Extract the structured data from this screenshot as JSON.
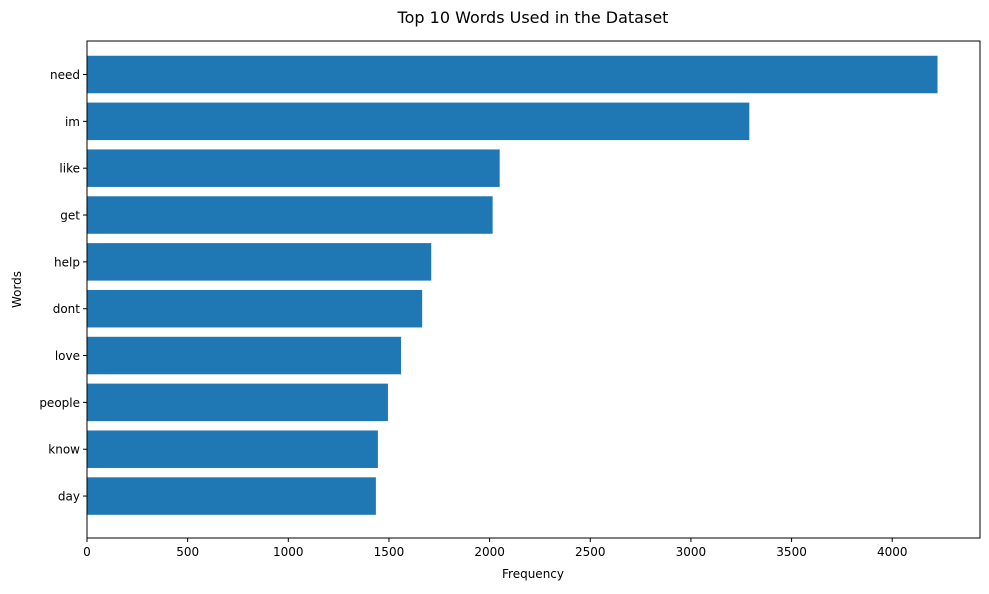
{
  "chart_data": {
    "type": "bar",
    "orientation": "horizontal",
    "title": "Top 10 Words Used in the Dataset",
    "xlabel": "Frequency",
    "ylabel": "Words",
    "categories": [
      "need",
      "im",
      "like",
      "get",
      "help",
      "dont",
      "love",
      "people",
      "know",
      "day"
    ],
    "values": [
      4225,
      3290,
      2050,
      2015,
      1710,
      1665,
      1560,
      1495,
      1445,
      1435
    ],
    "xlim": [
      0,
      4436
    ],
    "xticks": [
      0,
      500,
      1000,
      1500,
      2000,
      2500,
      3000,
      3500,
      4000
    ],
    "grid": false,
    "legend": "none",
    "bar_color": "#1f77b4"
  }
}
